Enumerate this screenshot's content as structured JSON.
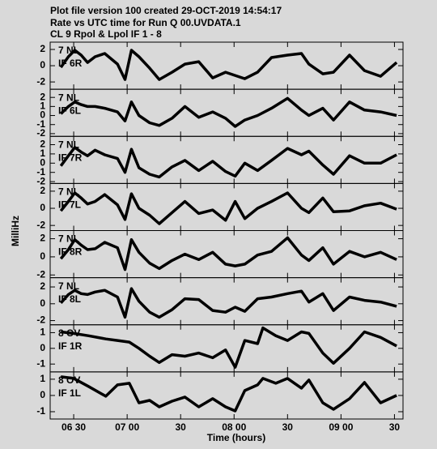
{
  "chart_data": [
    {
      "type": "line",
      "title": [
        "Plot file version 100  created 29-OCT-2019 14:54:17",
        "Rate vs UTC time for Run Q 00.UVDATA.1",
        "CL 9  Rpol & Lpol  IF 1 - 8"
      ],
      "ylabel": "MilliHz",
      "labels": [
        "7 NL",
        "IF 6R"
      ],
      "xlim": [
        6.28,
        9.58
      ],
      "ylim": [
        -2.9,
        2.9
      ],
      "yticks": [
        -2,
        0,
        2
      ],
      "x": [
        6.38,
        6.45,
        6.51,
        6.57,
        6.63,
        6.7,
        6.79,
        6.91,
        6.98,
        7.04,
        7.11,
        7.21,
        7.3,
        7.42,
        7.54,
        7.67,
        7.8,
        7.92,
        8.01,
        8.1,
        8.22,
        8.35,
        8.5,
        8.63,
        8.7,
        8.83,
        8.93,
        9.08,
        9.22,
        9.37,
        9.52
      ],
      "values": [
        -0.2,
        1.1,
        1.9,
        1.3,
        0.4,
        1.1,
        1.5,
        0.2,
        -1.7,
        1.9,
        1.1,
        -0.3,
        -1.7,
        -0.8,
        0.2,
        0.5,
        -1.5,
        -0.8,
        -1.2,
        -1.6,
        -0.8,
        1.0,
        1.3,
        1.5,
        0.2,
        -1.0,
        -0.8,
        1.3,
        -0.6,
        -1.3,
        0.4
      ]
    },
    {
      "type": "line",
      "labels": [
        "7 NL",
        "IF 6L"
      ],
      "xlim": [
        6.28,
        9.58
      ],
      "ylim": [
        -2.3,
        2.9
      ],
      "yticks": [
        -2,
        -1,
        0,
        1,
        2
      ],
      "x": [
        6.38,
        6.45,
        6.51,
        6.57,
        6.63,
        6.7,
        6.79,
        6.91,
        6.98,
        7.04,
        7.11,
        7.21,
        7.3,
        7.42,
        7.54,
        7.67,
        7.8,
        7.92,
        8.01,
        8.1,
        8.22,
        8.35,
        8.5,
        8.63,
        8.7,
        8.83,
        8.93,
        9.08,
        9.22,
        9.37,
        9.52
      ],
      "values": [
        0.2,
        1.0,
        1.5,
        1.2,
        1.0,
        1.0,
        0.8,
        0.4,
        -0.6,
        1.5,
        0.0,
        -0.8,
        -1.1,
        -0.3,
        1.0,
        -0.2,
        0.4,
        -0.3,
        -1.2,
        -0.5,
        0.0,
        0.8,
        1.9,
        0.6,
        0.0,
        0.8,
        -0.5,
        1.5,
        0.6,
        0.4,
        0.0
      ]
    },
    {
      "type": "line",
      "labels": [
        "7 NL",
        "IF 7R"
      ],
      "xlim": [
        6.28,
        9.58
      ],
      "ylim": [
        -2.2,
        2.9
      ],
      "yticks": [
        -2,
        -1,
        0,
        1,
        2
      ],
      "x": [
        6.38,
        6.45,
        6.51,
        6.57,
        6.63,
        6.7,
        6.79,
        6.91,
        6.98,
        7.04,
        7.11,
        7.21,
        7.3,
        7.42,
        7.54,
        7.67,
        7.8,
        7.92,
        8.01,
        8.1,
        8.22,
        8.35,
        8.5,
        8.63,
        8.7,
        8.83,
        8.93,
        9.08,
        9.22,
        9.37,
        9.52
      ],
      "values": [
        -0.3,
        0.8,
        1.7,
        1.2,
        0.8,
        1.4,
        0.9,
        0.5,
        -1.0,
        1.5,
        -0.5,
        -1.2,
        -1.5,
        -0.4,
        0.3,
        -0.8,
        0.2,
        -0.9,
        -1.4,
        0.0,
        -0.8,
        0.3,
        1.6,
        0.9,
        1.3,
        -0.2,
        -1.2,
        0.8,
        0.0,
        0.0,
        0.9
      ]
    },
    {
      "type": "line",
      "labels": [
        "7 NL",
        "IF 7L"
      ],
      "xlim": [
        6.28,
        9.58
      ],
      "ylim": [
        -2.6,
        2.9
      ],
      "yticks": [
        -2,
        0,
        2
      ],
      "x": [
        6.38,
        6.45,
        6.51,
        6.57,
        6.63,
        6.7,
        6.79,
        6.91,
        6.98,
        7.04,
        7.11,
        7.21,
        7.3,
        7.42,
        7.54,
        7.67,
        7.8,
        7.92,
        8.01,
        8.1,
        8.22,
        8.35,
        8.5,
        8.63,
        8.7,
        8.83,
        8.93,
        9.08,
        9.22,
        9.37,
        9.52
      ],
      "values": [
        -0.3,
        0.8,
        1.8,
        1.2,
        0.5,
        0.8,
        1.6,
        0.4,
        -1.3,
        1.7,
        0.0,
        -0.8,
        -1.8,
        -0.5,
        0.8,
        -0.6,
        -0.2,
        -1.4,
        0.8,
        -1.2,
        0.0,
        0.8,
        1.8,
        0.0,
        -0.5,
        1.2,
        -0.4,
        -0.3,
        0.3,
        0.6,
        -0.1
      ]
    },
    {
      "type": "line",
      "labels": [
        "7 NL",
        "IF 8R"
      ],
      "xlim": [
        6.28,
        9.58
      ],
      "ylim": [
        -2.3,
        2.9
      ],
      "yticks": [
        -2,
        0,
        2
      ],
      "x": [
        6.38,
        6.45,
        6.51,
        6.57,
        6.63,
        6.7,
        6.79,
        6.91,
        6.98,
        7.04,
        7.11,
        7.21,
        7.3,
        7.42,
        7.54,
        7.67,
        7.8,
        7.92,
        8.01,
        8.1,
        8.22,
        8.35,
        8.5,
        8.63,
        8.7,
        8.83,
        8.93,
        9.08,
        9.22,
        9.37,
        9.52
      ],
      "values": [
        -0.2,
        0.8,
        1.9,
        1.3,
        0.8,
        0.9,
        1.6,
        1.0,
        -1.4,
        1.9,
        0.5,
        -0.7,
        -1.3,
        -0.4,
        0.3,
        -0.3,
        0.5,
        -0.8,
        -1.0,
        -0.8,
        0.2,
        0.6,
        2.1,
        0.2,
        -0.4,
        1.0,
        -0.8,
        0.6,
        0.0,
        0.5,
        -0.3
      ]
    },
    {
      "type": "line",
      "labels": [
        "7 NL",
        "IF 8L"
      ],
      "xlim": [
        6.28,
        9.58
      ],
      "ylim": [
        -2.5,
        3.1
      ],
      "yticks": [
        -2,
        0,
        2
      ],
      "x": [
        6.38,
        6.45,
        6.51,
        6.57,
        6.63,
        6.7,
        6.79,
        6.91,
        6.98,
        7.04,
        7.11,
        7.21,
        7.3,
        7.42,
        7.54,
        7.67,
        7.8,
        7.92,
        8.01,
        8.1,
        8.22,
        8.35,
        8.5,
        8.63,
        8.7,
        8.83,
        8.93,
        9.08,
        9.22,
        9.37,
        9.52
      ],
      "values": [
        0.1,
        1.1,
        1.6,
        1.2,
        1.1,
        1.4,
        1.6,
        0.8,
        -1.6,
        1.8,
        0.3,
        -1.0,
        -1.6,
        -0.7,
        0.6,
        0.5,
        -0.8,
        -1.0,
        -0.4,
        -0.9,
        0.6,
        0.8,
        1.2,
        1.5,
        0.2,
        1.2,
        -0.8,
        0.8,
        0.4,
        0.2,
        -0.3
      ]
    },
    {
      "type": "line",
      "labels": [
        "8 OV",
        "IF 1R"
      ],
      "xlim": [
        6.28,
        9.58
      ],
      "ylim": [
        -1.5,
        1.5
      ],
      "yticks": [
        -1,
        0,
        1
      ],
      "x": [
        6.38,
        6.5,
        6.64,
        6.8,
        6.91,
        7.02,
        7.11,
        7.21,
        7.3,
        7.42,
        7.54,
        7.67,
        7.8,
        7.92,
        8.01,
        8.1,
        8.22,
        8.27,
        8.39,
        8.5,
        8.63,
        8.7,
        8.83,
        8.93,
        9.08,
        9.22,
        9.37,
        9.52
      ],
      "values": [
        1.05,
        0.95,
        0.8,
        0.6,
        0.5,
        0.4,
        0.0,
        -0.5,
        -0.9,
        -0.4,
        -0.5,
        -0.3,
        -0.6,
        -0.1,
        -1.2,
        0.5,
        0.3,
        1.3,
        0.8,
        0.5,
        1.05,
        0.95,
        -0.3,
        -0.95,
        0.0,
        1.05,
        0.7,
        0.15
      ]
    },
    {
      "type": "line",
      "labels": [
        "8 OV",
        "IF 1L"
      ],
      "xlim": [
        6.28,
        9.58
      ],
      "ylim": [
        -1.45,
        1.45
      ],
      "yticks": [
        -1,
        0,
        1
      ],
      "x": [
        6.38,
        6.5,
        6.64,
        6.8,
        6.91,
        7.02,
        7.11,
        7.21,
        7.3,
        7.42,
        7.54,
        7.67,
        7.8,
        7.92,
        8.01,
        8.1,
        8.22,
        8.27,
        8.39,
        8.5,
        8.63,
        8.7,
        8.83,
        8.93,
        9.08,
        9.22,
        9.37,
        9.52
      ],
      "values": [
        1.15,
        1.05,
        0.55,
        -0.05,
        0.65,
        0.75,
        -0.45,
        -0.3,
        -0.7,
        -0.35,
        -0.1,
        -0.7,
        -0.2,
        -0.7,
        -0.95,
        0.3,
        0.65,
        1.05,
        0.75,
        1.05,
        0.45,
        0.95,
        -0.45,
        -0.85,
        -0.2,
        0.8,
        -0.45,
        0.0
      ],
      "xticks": [
        {
          "value": 6.5,
          "label": "06 30"
        },
        {
          "value": 7,
          "label": "07 00"
        },
        {
          "value": 7.5,
          "label": "30"
        },
        {
          "value": 8,
          "label": "08 00"
        },
        {
          "value": 8.5,
          "label": "30"
        },
        {
          "value": 9,
          "label": "09 00"
        },
        {
          "value": 9.5,
          "label": "30"
        }
      ],
      "xlabel": "Time (hours)"
    }
  ]
}
